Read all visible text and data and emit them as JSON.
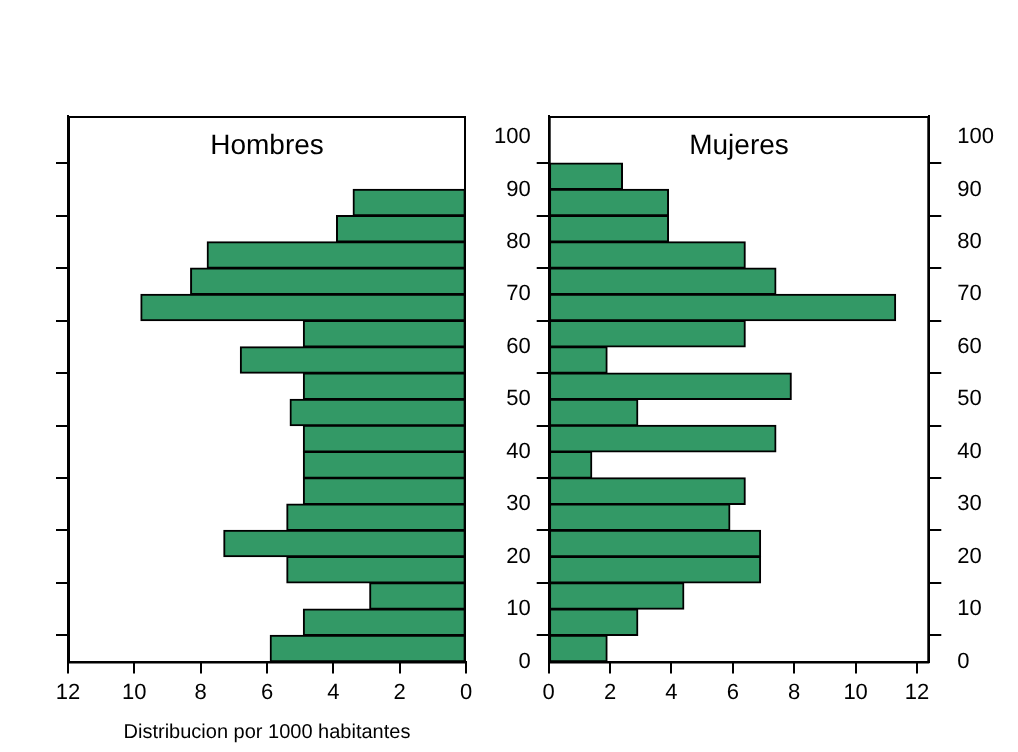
{
  "chart_data": [
    {
      "type": "histogram",
      "orientation": "horizontal",
      "title": "Hombres",
      "xlabel": "Distribucion por 1000 habitantes",
      "color": "#339966",
      "bins": [
        0,
        5,
        10,
        15,
        20,
        25,
        30,
        35,
        40,
        45,
        50,
        55,
        60,
        65,
        70,
        75,
        80,
        85,
        90
      ],
      "values": [
        5.9,
        4.9,
        2.9,
        5.4,
        7.3,
        5.4,
        4.9,
        4.9,
        4.9,
        5.3,
        4.9,
        6.8,
        4.9,
        9.8,
        8.3,
        7.8,
        3.9,
        3.4
      ],
      "xlim": [
        12,
        0
      ],
      "xticks": [
        12,
        10,
        8,
        6,
        4,
        2,
        0
      ],
      "ylim": [
        0,
        104
      ],
      "yticks": [
        0,
        10,
        20,
        30,
        40,
        50,
        60,
        70,
        80,
        90,
        100
      ],
      "tick_labels": "x",
      "grid": false,
      "legend": false
    },
    {
      "type": "histogram",
      "orientation": "horizontal",
      "title": "Mujeres",
      "color": "#339966",
      "bins": [
        0,
        5,
        10,
        15,
        20,
        25,
        30,
        35,
        40,
        45,
        50,
        55,
        60,
        65,
        70,
        75,
        80,
        85,
        90,
        95
      ],
      "values": [
        1.9,
        2.9,
        4.4,
        6.9,
        6.9,
        5.9,
        6.4,
        1.4,
        7.4,
        2.9,
        7.9,
        1.9,
        6.4,
        11.3,
        7.4,
        6.4,
        3.9,
        3.9,
        2.4
      ],
      "xlim": [
        0,
        12.4
      ],
      "xticks": [
        0,
        2,
        4,
        6,
        8,
        10,
        12
      ],
      "ylim": [
        0,
        104
      ],
      "yticks": [
        0,
        10,
        20,
        30,
        40,
        50,
        60,
        70,
        80,
        90,
        100
      ],
      "y2lim": [
        0,
        104
      ],
      "y2ticks": [
        0,
        10,
        20,
        30,
        40,
        50,
        60,
        70,
        80,
        90,
        100
      ],
      "grid": false,
      "legend": false
    }
  ]
}
